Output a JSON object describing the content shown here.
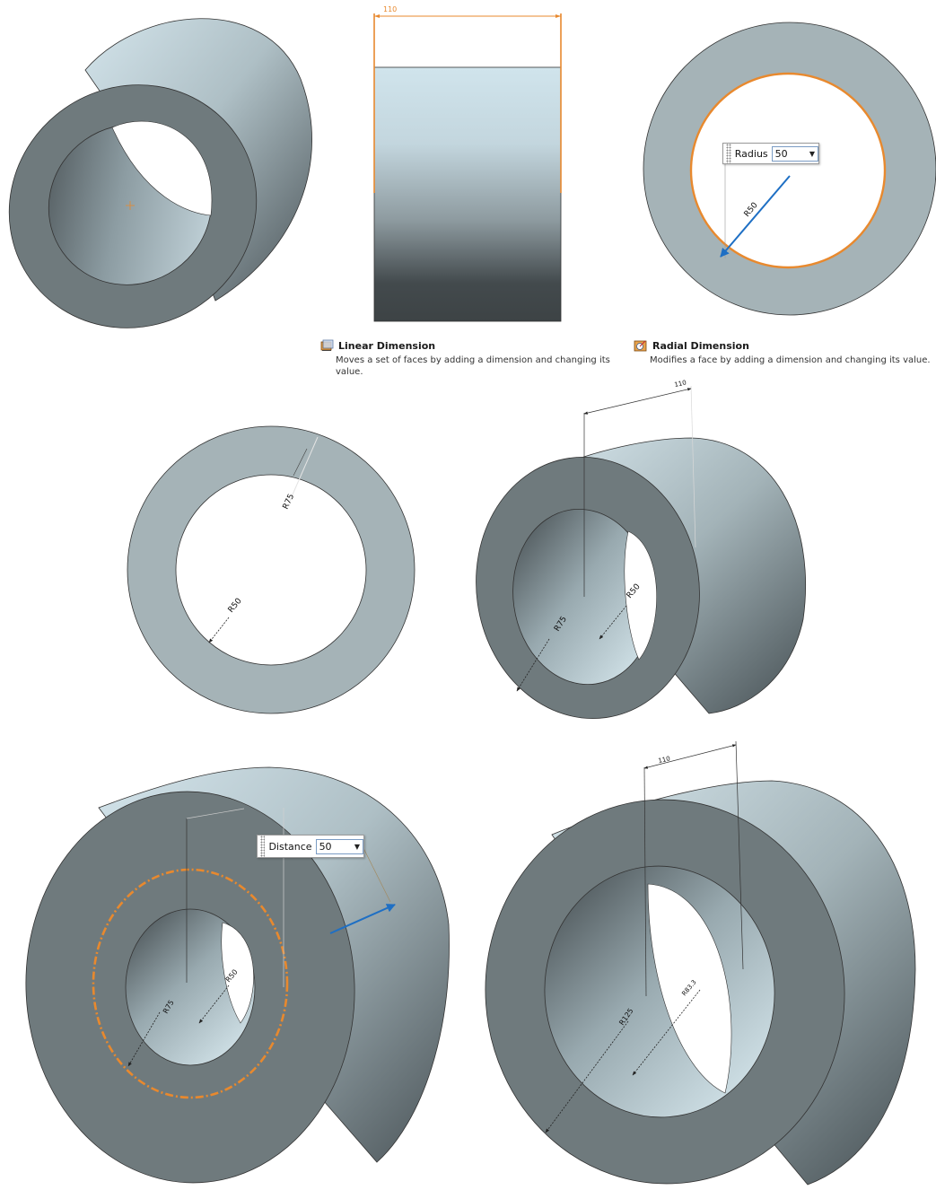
{
  "top_view_dimension": "110",
  "tooltips": {
    "linear": {
      "title": "Linear Dimension",
      "description": "Moves a set of faces by adding a dimension and changing its value."
    },
    "radial": {
      "title": "Radial Dimension",
      "description": "Modifies a face by adding a dimension and changing its value."
    }
  },
  "radius_box": {
    "label": "Radius",
    "value": "50"
  },
  "distance_box": {
    "label": "Distance",
    "value": "50"
  },
  "radial_view_label": "R50",
  "ring_front_labels": {
    "outer": "R75",
    "inner": "R50"
  },
  "ring_iso_labels": {
    "length": "110",
    "outer": "R75",
    "inner": "R50"
  },
  "ring_large_labels": {
    "outer": "R75",
    "inner": "R50"
  },
  "ring_result_labels": {
    "length": "110",
    "outer": "R125",
    "inner": "R83.3"
  },
  "colors": {
    "face_dark": "#6f7a7d",
    "face_light": "#a5b3b7",
    "highlight": "#e8892e",
    "arrow": "#1e6fc4"
  }
}
